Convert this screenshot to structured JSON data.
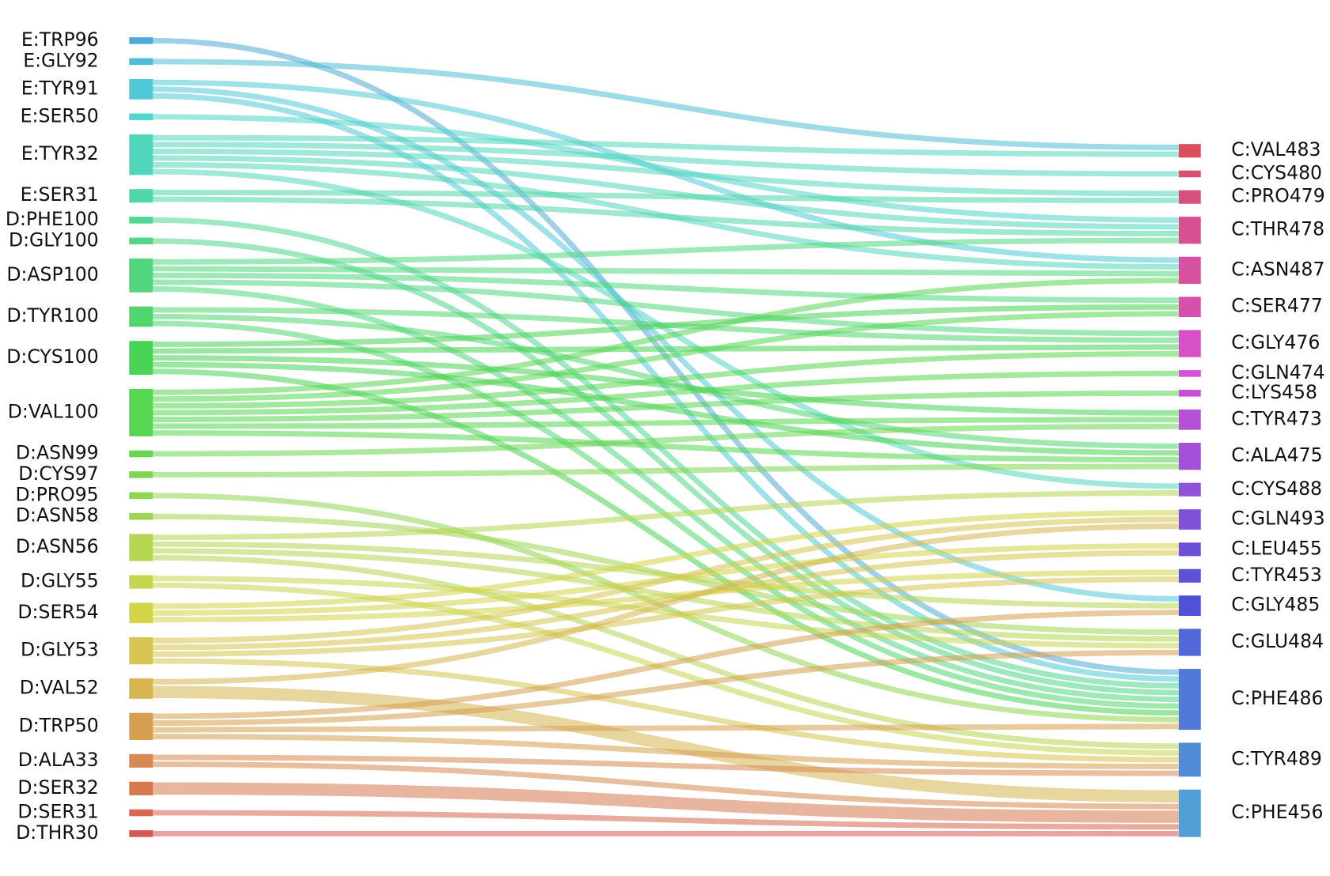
{
  "chart_data": {
    "type": "sankey",
    "left_nodes": [
      {
        "name": "E:TRP96",
        "color": "hsl(200,62%,58%)"
      },
      {
        "name": "E:GLY92",
        "color": "hsl(192,62%,58%)"
      },
      {
        "name": "E:TYR91",
        "color": "hsl(186,62%,58%)"
      },
      {
        "name": "E:SER50",
        "color": "hsl(175,62%,58%)"
      },
      {
        "name": "E:TYR32",
        "color": "hsl(168,62%,58%)"
      },
      {
        "name": "E:SER31",
        "color": "hsl(160,62%,58%)"
      },
      {
        "name": "D:PHE100",
        "color": "hsl(150,62%,58%)"
      },
      {
        "name": "D:GLY100",
        "color": "hsl(145,62%,58%)"
      },
      {
        "name": "D:ASP100",
        "color": "hsl(140,62%,58%)"
      },
      {
        "name": "D:TYR100",
        "color": "hsl(133,62%,58%)"
      },
      {
        "name": "D:CYS100",
        "color": "hsl(125,62%,56%)"
      },
      {
        "name": "D:VAL100",
        "color": "hsl(118,62%,58%)"
      },
      {
        "name": "D:ASN99",
        "color": "hsl(110,62%,58%)"
      },
      {
        "name": "D:CYS97",
        "color": "hsl(100,62%,58%)"
      },
      {
        "name": "D:PRO95",
        "color": "hsl(92,62%,58%)"
      },
      {
        "name": "D:ASN58",
        "color": "hsl(85,62%,58%)"
      },
      {
        "name": "D:ASN56",
        "color": "hsl(75,62%,58%)"
      },
      {
        "name": "D:GLY55",
        "color": "hsl(67,62%,58%)"
      },
      {
        "name": "D:SER54",
        "color": "hsl(60,62%,56%)"
      },
      {
        "name": "D:GLY53",
        "color": "hsl(52,62%,58%)"
      },
      {
        "name": "D:VAL52",
        "color": "hsl(45,62%,58%)"
      },
      {
        "name": "D:TRP50",
        "color": "hsl(35,62%,58%)"
      },
      {
        "name": "D:ALA33",
        "color": "hsl(25,62%,58%)"
      },
      {
        "name": "D:SER32",
        "color": "hsl(18,62%,58%)"
      },
      {
        "name": "D:SER31",
        "color": "hsl(10,62%,58%)"
      },
      {
        "name": "D:THR30",
        "color": "hsl(2,62%,58%)"
      }
    ],
    "right_nodes": [
      {
        "name": "C:VAL483",
        "color": "hsl(355,62%,58%)"
      },
      {
        "name": "C:CYS480",
        "color": "hsl(348,62%,58%)"
      },
      {
        "name": "C:PRO479",
        "color": "hsl(340,62%,58%)"
      },
      {
        "name": "C:THR478",
        "color": "hsl(332,62%,58%)"
      },
      {
        "name": "C:ASN487",
        "color": "hsl(325,62%,58%)"
      },
      {
        "name": "C:SER477",
        "color": "hsl(318,62%,58%)"
      },
      {
        "name": "C:GLY476",
        "color": "hsl(308,62%,58%)"
      },
      {
        "name": "C:GLN474",
        "color": "hsl(300,62%,58%)"
      },
      {
        "name": "C:LYS458",
        "color": "hsl(293,62%,58%)"
      },
      {
        "name": "C:TYR473",
        "color": "hsl(285,62%,58%)"
      },
      {
        "name": "C:ALA475",
        "color": "hsl(277,62%,58%)"
      },
      {
        "name": "C:CYS488",
        "color": "hsl(268,62%,58%)"
      },
      {
        "name": "C:GLN493",
        "color": "hsl(260,62%,58%)"
      },
      {
        "name": "C:LEU455",
        "color": "hsl(252,62%,58%)"
      },
      {
        "name": "C:TYR453",
        "color": "hsl(246,62%,58%)"
      },
      {
        "name": "C:GLY485",
        "color": "hsl(240,62%,58%)"
      },
      {
        "name": "C:GLU484",
        "color": "hsl(230,62%,58%)"
      },
      {
        "name": "C:PHE486",
        "color": "hsl(222,62%,58%)"
      },
      {
        "name": "C:TYR489",
        "color": "hsl(213,62%,58%)"
      },
      {
        "name": "C:PHE456",
        "color": "hsl(205,62%,58%)"
      }
    ],
    "links": [
      {
        "source": "E:TRP96",
        "target": "C:PHE486",
        "value": 1
      },
      {
        "source": "E:GLY92",
        "target": "C:VAL483",
        "value": 1
      },
      {
        "source": "E:TYR91",
        "target": "C:ASN487",
        "value": 1
      },
      {
        "source": "E:TYR91",
        "target": "C:GLY485",
        "value": 1
      },
      {
        "source": "E:TYR91",
        "target": "C:PHE486",
        "value": 1
      },
      {
        "source": "E:SER50",
        "target": "C:THR478",
        "value": 1
      },
      {
        "source": "E:TYR32",
        "target": "C:VAL483",
        "value": 1
      },
      {
        "source": "E:TYR32",
        "target": "C:CYS480",
        "value": 1
      },
      {
        "source": "E:TYR32",
        "target": "C:PRO479",
        "value": 1
      },
      {
        "source": "E:TYR32",
        "target": "C:THR478",
        "value": 1
      },
      {
        "source": "E:TYR32",
        "target": "C:ASN487",
        "value": 1
      },
      {
        "source": "E:TYR32",
        "target": "C:CYS488",
        "value": 1
      },
      {
        "source": "E:SER31",
        "target": "C:PRO479",
        "value": 1
      },
      {
        "source": "E:SER31",
        "target": "C:THR478",
        "value": 1
      },
      {
        "source": "D:PHE100",
        "target": "C:PHE486",
        "value": 1
      },
      {
        "source": "D:GLY100",
        "target": "C:PHE486",
        "value": 1
      },
      {
        "source": "D:ASP100",
        "target": "C:THR478",
        "value": 1
      },
      {
        "source": "D:ASP100",
        "target": "C:ASN487",
        "value": 1
      },
      {
        "source": "D:ASP100",
        "target": "C:SER477",
        "value": 1
      },
      {
        "source": "D:ASP100",
        "target": "C:GLY476",
        "value": 1
      },
      {
        "source": "D:ASP100",
        "target": "C:PHE486",
        "value": 1
      },
      {
        "source": "D:TYR100",
        "target": "C:GLY476",
        "value": 1
      },
      {
        "source": "D:TYR100",
        "target": "C:ALA475",
        "value": 1
      },
      {
        "source": "D:TYR100",
        "target": "C:PHE486",
        "value": 1
      },
      {
        "source": "D:CYS100",
        "target": "C:SER477",
        "value": 1
      },
      {
        "source": "D:CYS100",
        "target": "C:GLY476",
        "value": 1
      },
      {
        "source": "D:CYS100",
        "target": "C:TYR473",
        "value": 1
      },
      {
        "source": "D:CYS100",
        "target": "C:ALA475",
        "value": 1
      },
      {
        "source": "D:CYS100",
        "target": "C:PHE486",
        "value": 1
      },
      {
        "source": "D:VAL100",
        "target": "C:ASN487",
        "value": 1
      },
      {
        "source": "D:VAL100",
        "target": "C:SER477",
        "value": 1
      },
      {
        "source": "D:VAL100",
        "target": "C:GLY476",
        "value": 1
      },
      {
        "source": "D:VAL100",
        "target": "C:GLN474",
        "value": 1
      },
      {
        "source": "D:VAL100",
        "target": "C:LYS458",
        "value": 1
      },
      {
        "source": "D:VAL100",
        "target": "C:TYR473",
        "value": 1
      },
      {
        "source": "D:VAL100",
        "target": "C:ALA475",
        "value": 1
      },
      {
        "source": "D:ASN99",
        "target": "C:TYR473",
        "value": 1
      },
      {
        "source": "D:CYS97",
        "target": "C:ALA475",
        "value": 1
      },
      {
        "source": "D:PRO95",
        "target": "C:PHE486",
        "value": 1
      },
      {
        "source": "D:ASN58",
        "target": "C:GLU484",
        "value": 1
      },
      {
        "source": "D:ASN56",
        "target": "C:CYS488",
        "value": 1
      },
      {
        "source": "D:ASN56",
        "target": "C:GLY485",
        "value": 1
      },
      {
        "source": "D:ASN56",
        "target": "C:GLU484",
        "value": 1
      },
      {
        "source": "D:ASN56",
        "target": "C:TYR489",
        "value": 1
      },
      {
        "source": "D:GLY55",
        "target": "C:GLU484",
        "value": 1
      },
      {
        "source": "D:GLY55",
        "target": "C:TYR489",
        "value": 1
      },
      {
        "source": "D:SER54",
        "target": "C:GLN493",
        "value": 1
      },
      {
        "source": "D:SER54",
        "target": "C:LEU455",
        "value": 1
      },
      {
        "source": "D:SER54",
        "target": "C:TYR453",
        "value": 1
      },
      {
        "source": "D:GLY53",
        "target": "C:GLN493",
        "value": 1
      },
      {
        "source": "D:GLY53",
        "target": "C:LEU455",
        "value": 1
      },
      {
        "source": "D:GLY53",
        "target": "C:TYR453",
        "value": 1
      },
      {
        "source": "D:GLY53",
        "target": "C:TYR489",
        "value": 1
      },
      {
        "source": "D:VAL52",
        "target": "C:GLN493",
        "value": 1
      },
      {
        "source": "D:VAL52",
        "target": "C:PHE456",
        "value": 2
      },
      {
        "source": "D:TRP50",
        "target": "C:GLY485",
        "value": 1
      },
      {
        "source": "D:TRP50",
        "target": "C:GLU484",
        "value": 1
      },
      {
        "source": "D:TRP50",
        "target": "C:PHE486",
        "value": 1
      },
      {
        "source": "D:TRP50",
        "target": "C:TYR489",
        "value": 1
      },
      {
        "source": "D:ALA33",
        "target": "C:TYR489",
        "value": 1
      },
      {
        "source": "D:ALA33",
        "target": "C:PHE456",
        "value": 1
      },
      {
        "source": "D:SER32",
        "target": "C:PHE456",
        "value": 2
      },
      {
        "source": "D:SER31",
        "target": "C:PHE456",
        "value": 1
      },
      {
        "source": "D:THR30",
        "target": "C:PHE456",
        "value": 1
      }
    ]
  }
}
